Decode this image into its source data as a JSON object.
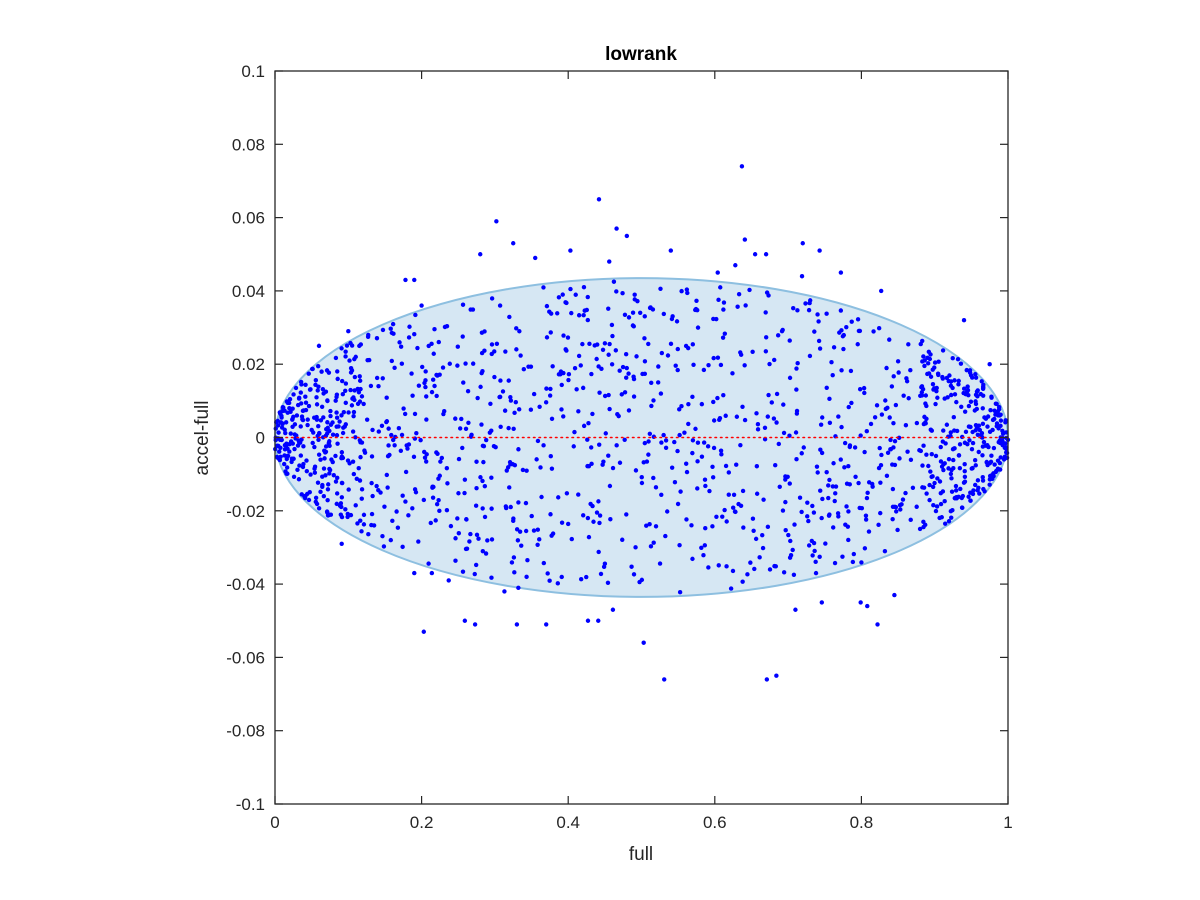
{
  "chart_data": {
    "type": "scatter",
    "title": "lowrank",
    "xlabel": "full",
    "ylabel": "accel-full",
    "xlim": [
      0,
      1
    ],
    "ylim": [
      -0.1,
      0.1
    ],
    "xticks": [
      "0",
      "0.2",
      "0.4",
      "0.6",
      "0.8",
      "1"
    ],
    "yticks": [
      "-0.1",
      "-0.08",
      "-0.06",
      "-0.04",
      "-0.02",
      "0",
      "0.02",
      "0.04",
      "0.06",
      "0.08",
      "0.1"
    ],
    "grid": false,
    "legend": "none",
    "marker_color": "#0000ff",
    "reference_line": {
      "y": 0,
      "color": "#ff0000",
      "style": "dotted"
    },
    "ellipse": {
      "cx": 0.5,
      "cy": 0,
      "rx": 0.5,
      "ry": 0.0435,
      "fill": "#d6e7f3",
      "stroke": "#8dbfe0"
    },
    "point_count": 1500,
    "points": [
      [
        0.442,
        0.065
      ],
      [
        0.302,
        0.059
      ],
      [
        0.637,
        0.074
      ],
      [
        0.466,
        0.057
      ],
      [
        0.48,
        0.055
      ],
      [
        0.325,
        0.053
      ],
      [
        0.641,
        0.054
      ],
      [
        0.403,
        0.051
      ],
      [
        0.54,
        0.051
      ],
      [
        0.655,
        0.05
      ],
      [
        0.67,
        0.05
      ],
      [
        0.72,
        0.053
      ],
      [
        0.743,
        0.051
      ],
      [
        0.28,
        0.05
      ],
      [
        0.355,
        0.049
      ],
      [
        0.628,
        0.047
      ],
      [
        0.604,
        0.045
      ],
      [
        0.719,
        0.044
      ],
      [
        0.772,
        0.045
      ],
      [
        0.456,
        0.048
      ],
      [
        0.178,
        0.043
      ],
      [
        0.19,
        0.043
      ],
      [
        0.827,
        0.04
      ],
      [
        0.94,
        0.032
      ],
      [
        0.975,
        0.02
      ],
      [
        0.203,
        -0.053
      ],
      [
        0.237,
        -0.039
      ],
      [
        0.259,
        -0.05
      ],
      [
        0.273,
        -0.051
      ],
      [
        0.313,
        -0.042
      ],
      [
        0.33,
        -0.051
      ],
      [
        0.332,
        -0.041
      ],
      [
        0.37,
        -0.051
      ],
      [
        0.427,
        -0.05
      ],
      [
        0.441,
        -0.05
      ],
      [
        0.461,
        -0.047
      ],
      [
        0.503,
        -0.056
      ],
      [
        0.531,
        -0.066
      ],
      [
        0.671,
        -0.066
      ],
      [
        0.684,
        -0.065
      ],
      [
        0.71,
        -0.047
      ],
      [
        0.746,
        -0.045
      ],
      [
        0.799,
        -0.045
      ],
      [
        0.808,
        -0.046
      ],
      [
        0.822,
        -0.051
      ],
      [
        0.845,
        -0.043
      ],
      [
        0.19,
        -0.037
      ],
      [
        0.214,
        -0.037
      ],
      [
        0.158,
        -0.028
      ],
      [
        0.091,
        -0.029
      ],
      [
        0.04,
        -0.016
      ],
      [
        0.06,
        0.025
      ],
      [
        0.1,
        0.029
      ],
      [
        0.115,
        0.025
      ],
      [
        0.2,
        0.036
      ]
    ]
  }
}
